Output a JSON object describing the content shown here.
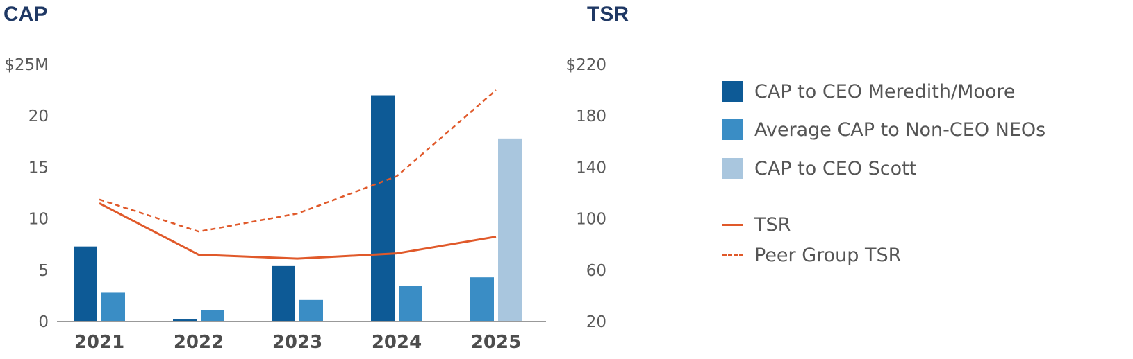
{
  "chart_data": {
    "type": "bar",
    "categories": [
      "2021",
      "2022",
      "2023",
      "2024",
      "2025"
    ],
    "left_axis": {
      "title": "CAP",
      "ticks": [
        "0",
        "5",
        "10",
        "15",
        "20",
        "$25M"
      ],
      "tick_values": [
        0,
        5,
        10,
        15,
        20,
        25
      ],
      "ylim": [
        0,
        25
      ]
    },
    "right_axis": {
      "title": "TSR",
      "ticks": [
        "20",
        "60",
        "100",
        "140",
        "180",
        "$220"
      ],
      "tick_values": [
        20,
        60,
        100,
        140,
        180,
        220
      ],
      "ylim": [
        20,
        220
      ]
    },
    "bar_series": [
      {
        "name": "CAP to CEO Meredith/Moore",
        "color": "#0d5a96",
        "values": [
          7.3,
          0.2,
          5.4,
          22.0,
          null
        ]
      },
      {
        "name": "Average CAP to Non-CEO NEOs",
        "color": "#3a8dc5",
        "values": [
          2.8,
          1.1,
          2.1,
          3.5,
          4.3
        ]
      },
      {
        "name": "CAP to CEO Scott",
        "color": "#a9c6de",
        "values": [
          null,
          null,
          null,
          null,
          17.8
        ]
      }
    ],
    "line_series": [
      {
        "name": "TSR",
        "color": "#e0592a",
        "style": "solid",
        "axis": "right",
        "values": [
          112,
          72,
          69,
          73,
          86
        ]
      },
      {
        "name": "Peer Group TSR",
        "color": "#e0592a",
        "style": "dashed",
        "axis": "right",
        "values": [
          115,
          90,
          104,
          133,
          200
        ]
      }
    ],
    "legend": [
      {
        "label": "CAP to CEO Meredith/Moore",
        "kind": "swatch",
        "color": "#0d5a96"
      },
      {
        "label": "Average CAP to Non-CEO NEOs",
        "kind": "swatch",
        "color": "#3a8dc5"
      },
      {
        "label": "CAP to CEO Scott",
        "kind": "swatch",
        "color": "#a9c6de"
      },
      {
        "label": "TSR",
        "kind": "line",
        "color": "#e0592a"
      },
      {
        "label": "Peer Group TSR",
        "kind": "dashed-line",
        "color": "#e0592a"
      }
    ],
    "grid": false,
    "legend_position": "right"
  }
}
